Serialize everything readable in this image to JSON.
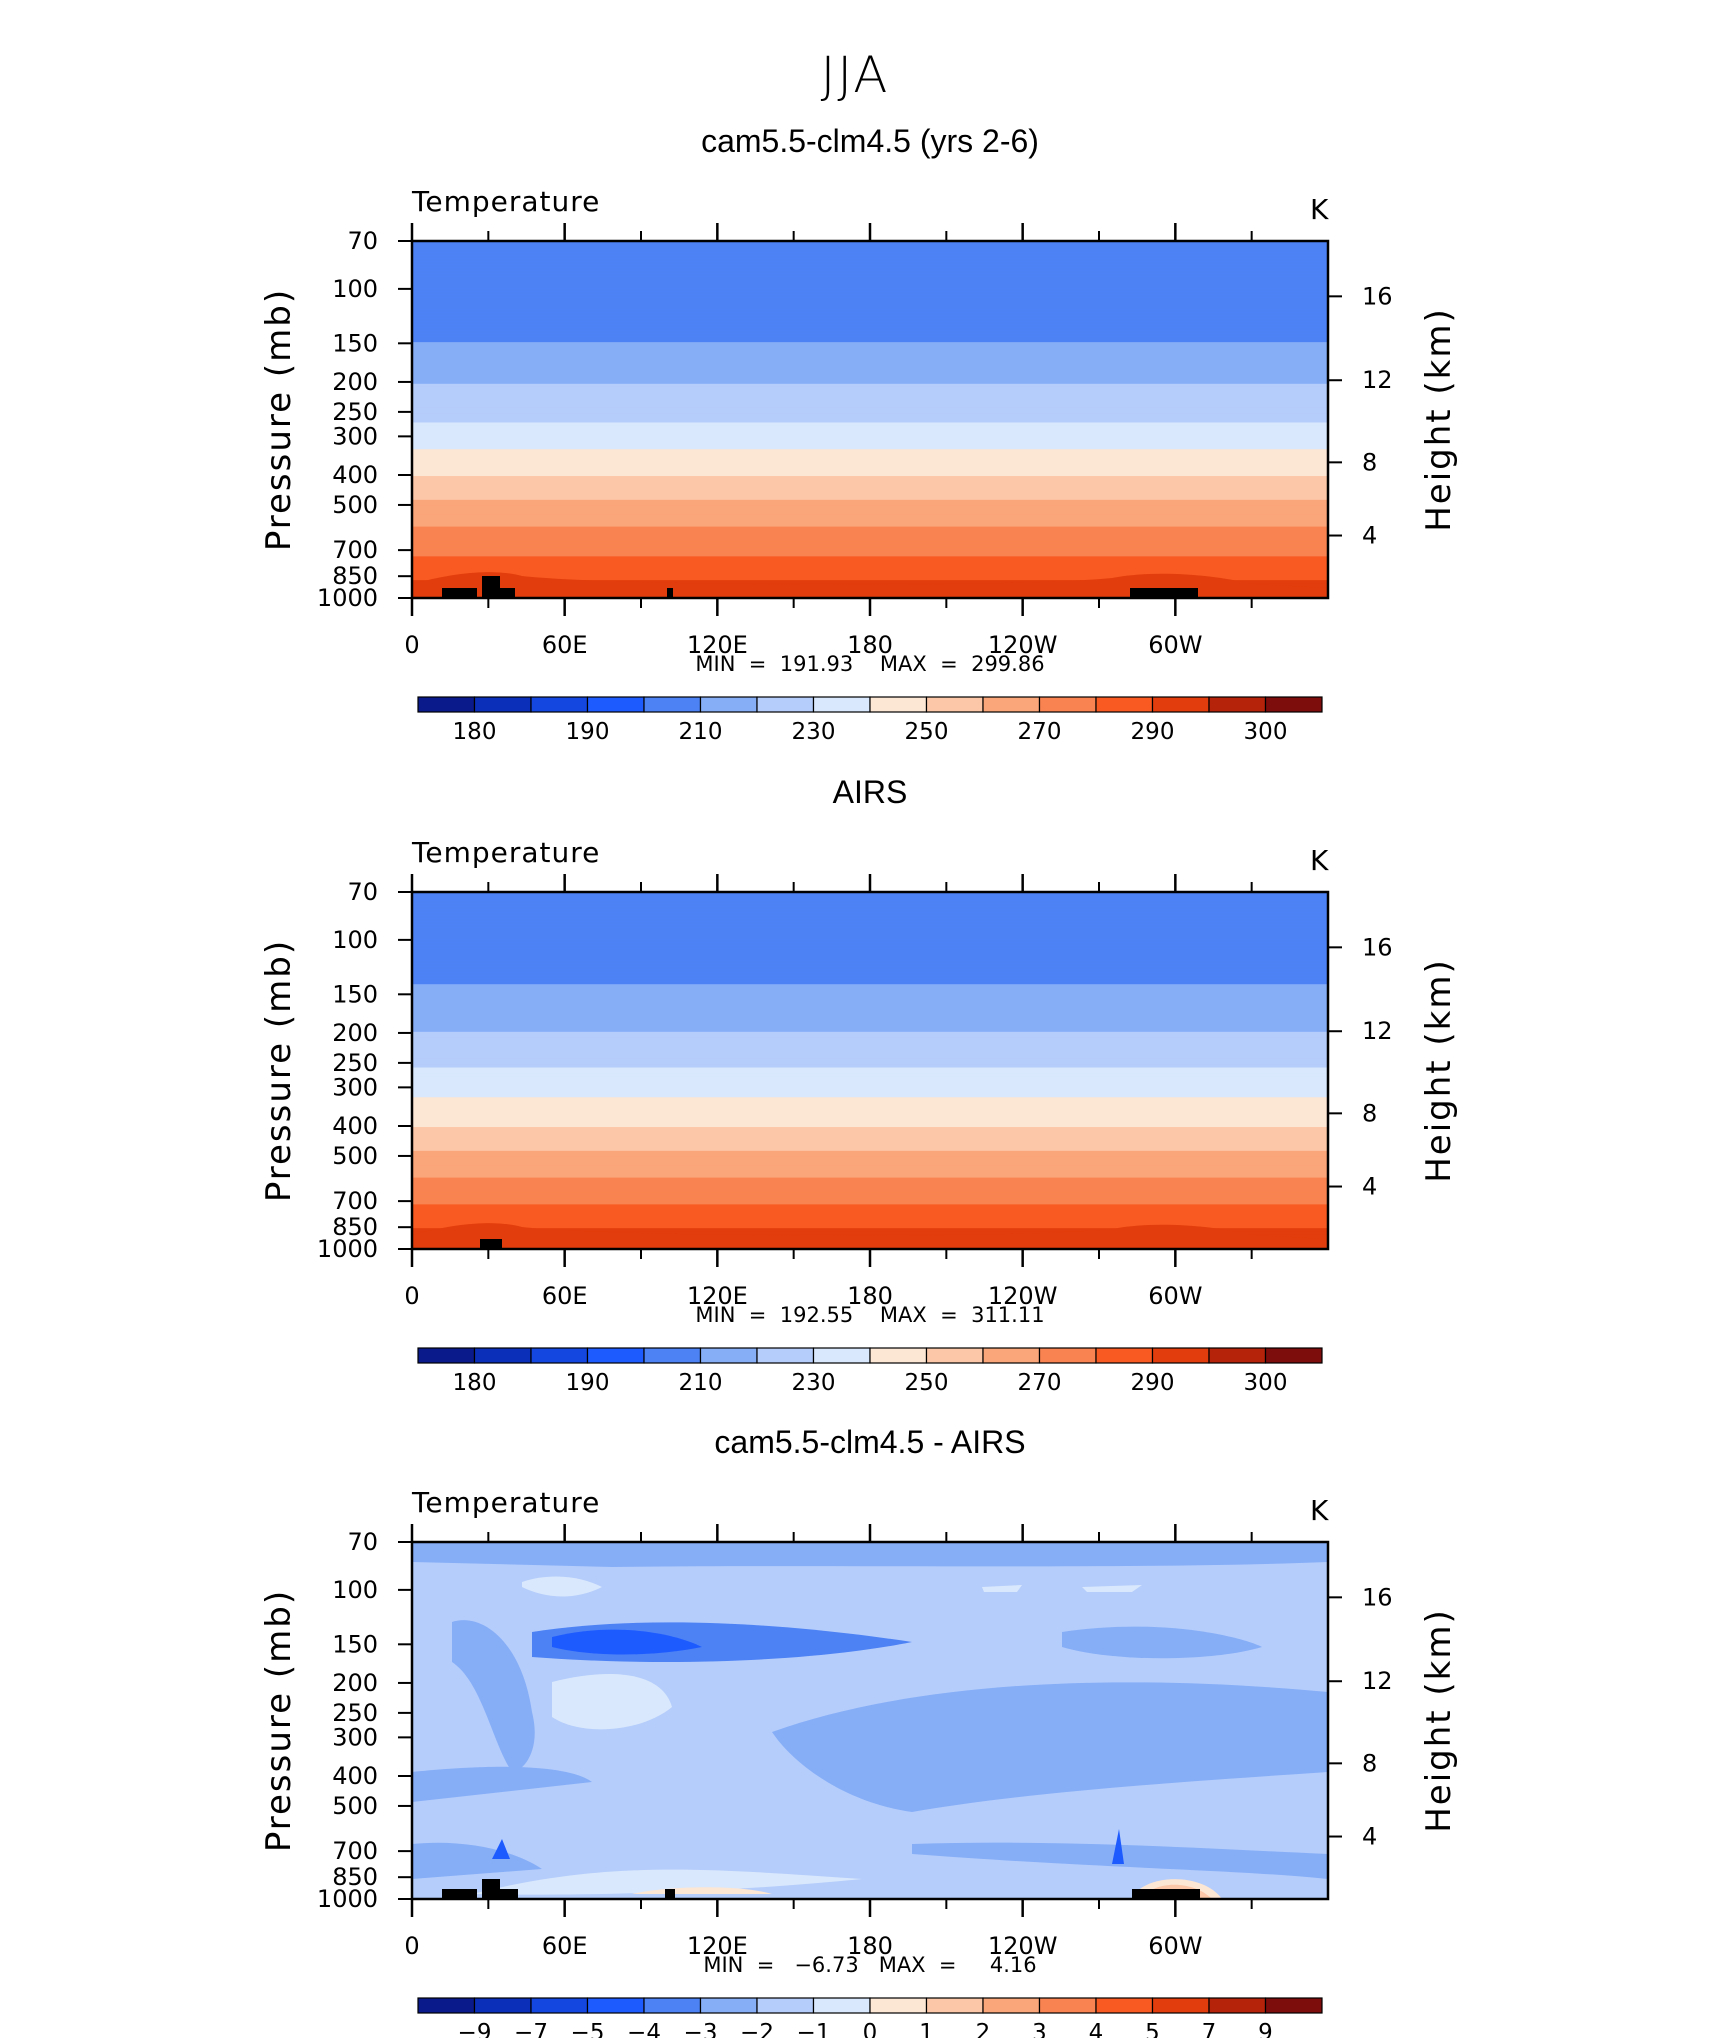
{
  "figure_title": "JJA",
  "chart_data": [
    {
      "type": "heatmap",
      "title": "cam5.5-clm4.5 (yrs 2-6)",
      "variable": "Temperature",
      "units": "K",
      "ylabel": "Pressure (mb)",
      "ylabel_right": "Height (km)",
      "x_ticks": [
        "0",
        "60E",
        "120E",
        "180",
        "120W",
        "60W"
      ],
      "y_ticks": [
        "70",
        "100",
        "150",
        "200",
        "250",
        "300",
        "400",
        "500",
        "700",
        "850",
        "1000"
      ],
      "y_ticks_right": [
        "16",
        "12",
        "8",
        "4"
      ],
      "stats_text": "MIN  =  191.93    MAX  =  299.86",
      "min": 191.93,
      "max": 299.86,
      "colorbar_labels": [
        "180",
        "190",
        "210",
        "230",
        "250",
        "270",
        "290",
        "300"
      ],
      "colorbar_colors": [
        "#0a1a8a",
        "#0b2fb8",
        "#1446e0",
        "#1e5bff",
        "#4d82f5",
        "#86aef7",
        "#b5cdfb",
        "#d9e8fc",
        "#fce6d4",
        "#fcc7a8",
        "#fba57a",
        "#f98451",
        "#f95a22",
        "#e23d0c",
        "#b5230a",
        "#7d0c0c"
      ],
      "profile_levels_K": [
        {
          "p": 70,
          "t": 200
        },
        {
          "p": 150,
          "t": 210
        },
        {
          "p": 250,
          "t": 227
        },
        {
          "p": 300,
          "t": 235
        },
        {
          "p": 400,
          "t": 250
        },
        {
          "p": 500,
          "t": 262
        },
        {
          "p": 700,
          "t": 278
        },
        {
          "p": 850,
          "t": 288
        },
        {
          "p": 1000,
          "t": 298
        }
      ],
      "grid": false
    },
    {
      "type": "heatmap",
      "title": "AIRS",
      "variable": "Temperature",
      "units": "K",
      "ylabel": "Pressure (mb)",
      "ylabel_right": "Height (km)",
      "x_ticks": [
        "0",
        "60E",
        "120E",
        "180",
        "120W",
        "60W"
      ],
      "y_ticks": [
        "70",
        "100",
        "150",
        "200",
        "250",
        "300",
        "400",
        "500",
        "700",
        "850",
        "1000"
      ],
      "y_ticks_right": [
        "16",
        "12",
        "8",
        "4"
      ],
      "stats_text": "MIN  =  192.55    MAX  =  311.11",
      "min": 192.55,
      "max": 311.11,
      "colorbar_labels": [
        "180",
        "190",
        "210",
        "230",
        "250",
        "270",
        "290",
        "300"
      ],
      "colorbar_colors": [
        "#0a1a8a",
        "#0b2fb8",
        "#1446e0",
        "#1e5bff",
        "#4d82f5",
        "#86aef7",
        "#b5cdfb",
        "#d9e8fc",
        "#fce6d4",
        "#fcc7a8",
        "#fba57a",
        "#f98451",
        "#f95a22",
        "#e23d0c",
        "#b5230a",
        "#7d0c0c"
      ],
      "profile_levels_K": [
        {
          "p": 70,
          "t": 201
        },
        {
          "p": 150,
          "t": 211
        },
        {
          "p": 250,
          "t": 228
        },
        {
          "p": 300,
          "t": 236
        },
        {
          "p": 400,
          "t": 250
        },
        {
          "p": 500,
          "t": 262
        },
        {
          "p": 700,
          "t": 278
        },
        {
          "p": 850,
          "t": 289
        },
        {
          "p": 1000,
          "t": 299
        }
      ],
      "grid": false
    },
    {
      "type": "heatmap",
      "title": "cam5.5-clm4.5 - AIRS",
      "variable": "Temperature",
      "units": "K",
      "ylabel": "Pressure (mb)",
      "ylabel_right": "Height (km)",
      "x_ticks": [
        "0",
        "60E",
        "120E",
        "180",
        "120W",
        "60W"
      ],
      "y_ticks": [
        "70",
        "100",
        "150",
        "200",
        "250",
        "300",
        "400",
        "500",
        "700",
        "850",
        "1000"
      ],
      "y_ticks_right": [
        "16",
        "12",
        "8",
        "4"
      ],
      "stats_text": "MIN  =   −6.73   MAX  =     4.16",
      "min": -6.73,
      "max": 4.16,
      "colorbar_labels": [
        "−9",
        "−7",
        "−5",
        "−4",
        "−3",
        "−2",
        "−1",
        "0",
        "1",
        "2",
        "3",
        "4",
        "5",
        "7",
        "9"
      ],
      "colorbar_colors": [
        "#0a1a8a",
        "#0b2fb8",
        "#1446e0",
        "#1e5bff",
        "#4d82f5",
        "#86aef7",
        "#b5cdfb",
        "#d9e8fc",
        "#fce6d4",
        "#fcc7a8",
        "#fba57a",
        "#f98451",
        "#f95a22",
        "#e23d0c",
        "#b5230a",
        "#7d0c0c"
      ],
      "dominant_bias_range_K": [
        -1,
        0
      ],
      "grid": false
    }
  ]
}
